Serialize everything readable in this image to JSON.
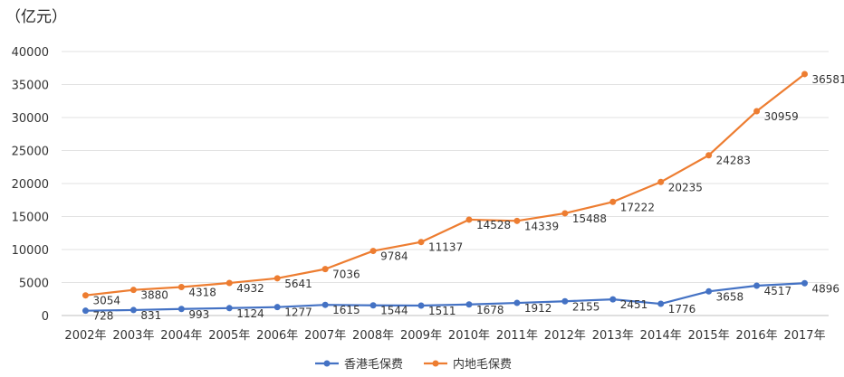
{
  "chart_data": {
    "type": "line",
    "unit_label": "（亿元）",
    "categories": [
      "2002年",
      "2003年",
      "2004年",
      "2005年",
      "2006年",
      "2007年",
      "2008年",
      "2009年",
      "2010年",
      "2011年",
      "2012年",
      "2013年",
      "2014年",
      "2015年",
      "2016年",
      "2017年"
    ],
    "ylim": [
      0,
      40000
    ],
    "yticks": [
      0,
      5000,
      10000,
      15000,
      20000,
      25000,
      30000,
      35000,
      40000
    ],
    "grid": true,
    "legend_position": "bottom",
    "series": [
      {
        "name": "香港毛保费",
        "color": "#4472c4",
        "values": [
          728,
          831,
          993,
          1124,
          1277,
          1615,
          1544,
          1511,
          1678,
          1912,
          2155,
          2451,
          1776,
          3658,
          4517,
          4896
        ]
      },
      {
        "name": "内地毛保费",
        "color": "#ed7d31",
        "values": [
          3054,
          3880,
          4318,
          4932,
          5641,
          7036,
          9784,
          11137,
          14528,
          14339,
          15488,
          17222,
          20235,
          24283,
          30959,
          36581
        ]
      }
    ]
  }
}
